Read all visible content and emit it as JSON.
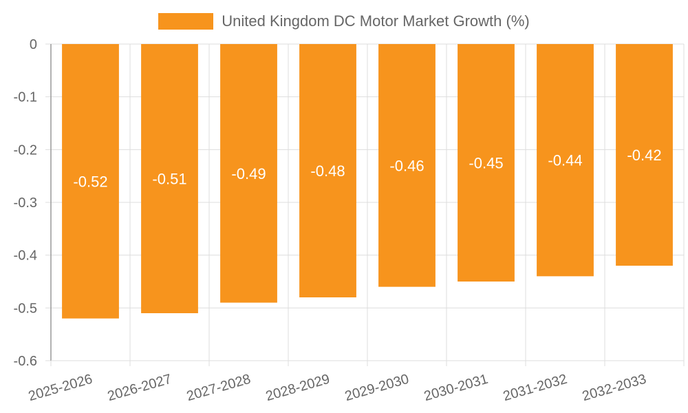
{
  "legend": {
    "label": "United Kingdom DC Motor Market Growth (%)"
  },
  "colors": {
    "bar": "#f7941d",
    "grid": "#dddddd",
    "axis": "#999999"
  },
  "chart_data": {
    "type": "bar",
    "categories": [
      "2025-2026",
      "2026-2027",
      "2027-2028",
      "2028-2029",
      "2029-2030",
      "2030-2031",
      "2031-2032",
      "2032-2033"
    ],
    "series": [
      {
        "name": "United Kingdom DC Motor Market Growth (%)",
        "values": [
          -0.52,
          -0.51,
          -0.49,
          -0.48,
          -0.46,
          -0.45,
          -0.44,
          -0.42
        ]
      }
    ],
    "ylim": [
      -0.6,
      0
    ],
    "yticks": [
      0,
      -0.1,
      -0.2,
      -0.3,
      -0.4,
      -0.5,
      -0.6
    ],
    "legend_position": "top-center",
    "grid": true
  }
}
